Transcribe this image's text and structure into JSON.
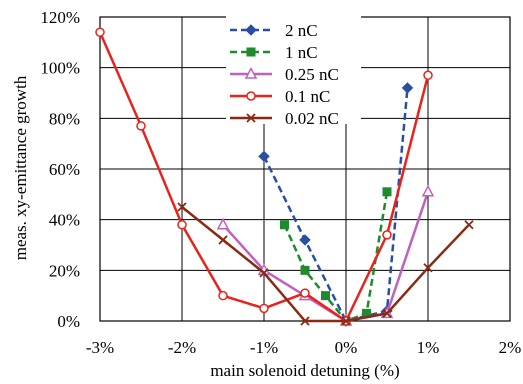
{
  "chart_data": {
    "type": "line",
    "title": "",
    "xlabel": "main solenoid detuning (%)",
    "ylabel": "meas. xy-emittance growth",
    "xlim": [
      -3,
      2
    ],
    "ylim": [
      0,
      120
    ],
    "x_ticks": [
      "-3%",
      "-2%",
      "-1%",
      "0%",
      "1%",
      "2%"
    ],
    "y_ticks": [
      "0%",
      "20%",
      "40%",
      "60%",
      "80%",
      "100%",
      "120%"
    ],
    "grid": true,
    "legend_position": "top-center",
    "series": [
      {
        "name": "2 nC",
        "color": "#2a4fa0",
        "line_style": "dashed",
        "marker": "diamond",
        "x": [
          -1.0,
          -0.5,
          0.0,
          0.5,
          0.75
        ],
        "y": [
          65,
          32,
          0,
          4,
          92
        ]
      },
      {
        "name": "1 nC",
        "color": "#1f8a2e",
        "line_style": "dashed",
        "marker": "square",
        "x": [
          -0.75,
          -0.5,
          -0.25,
          0.0,
          0.25,
          0.5
        ],
        "y": [
          38,
          20,
          10,
          0,
          3,
          51
        ]
      },
      {
        "name": "0.25 nC",
        "color": "#c060c0",
        "line_style": "solid",
        "marker": "triangle",
        "x": [
          -1.5,
          -1.0,
          -0.5,
          0.0,
          0.5,
          1.0
        ],
        "y": [
          38,
          20,
          10,
          0,
          3,
          51
        ]
      },
      {
        "name": "0.1 nC",
        "color": "#e8231c",
        "line_style": "solid",
        "marker": "circle",
        "x": [
          -3.0,
          -2.5,
          -2.0,
          -1.5,
          -1.0,
          -0.5,
          0.0,
          0.5,
          1.0
        ],
        "y": [
          114,
          77,
          38,
          10,
          5,
          11,
          0,
          34,
          97
        ]
      },
      {
        "name": "0.02 nC",
        "color": "#8b2a12",
        "line_style": "solid",
        "marker": "x",
        "x": [
          -2.0,
          -1.5,
          -1.0,
          -0.5,
          0.0,
          0.5,
          1.0,
          1.5
        ],
        "y": [
          45,
          32,
          19,
          0,
          0,
          3,
          21,
          38
        ]
      }
    ]
  }
}
